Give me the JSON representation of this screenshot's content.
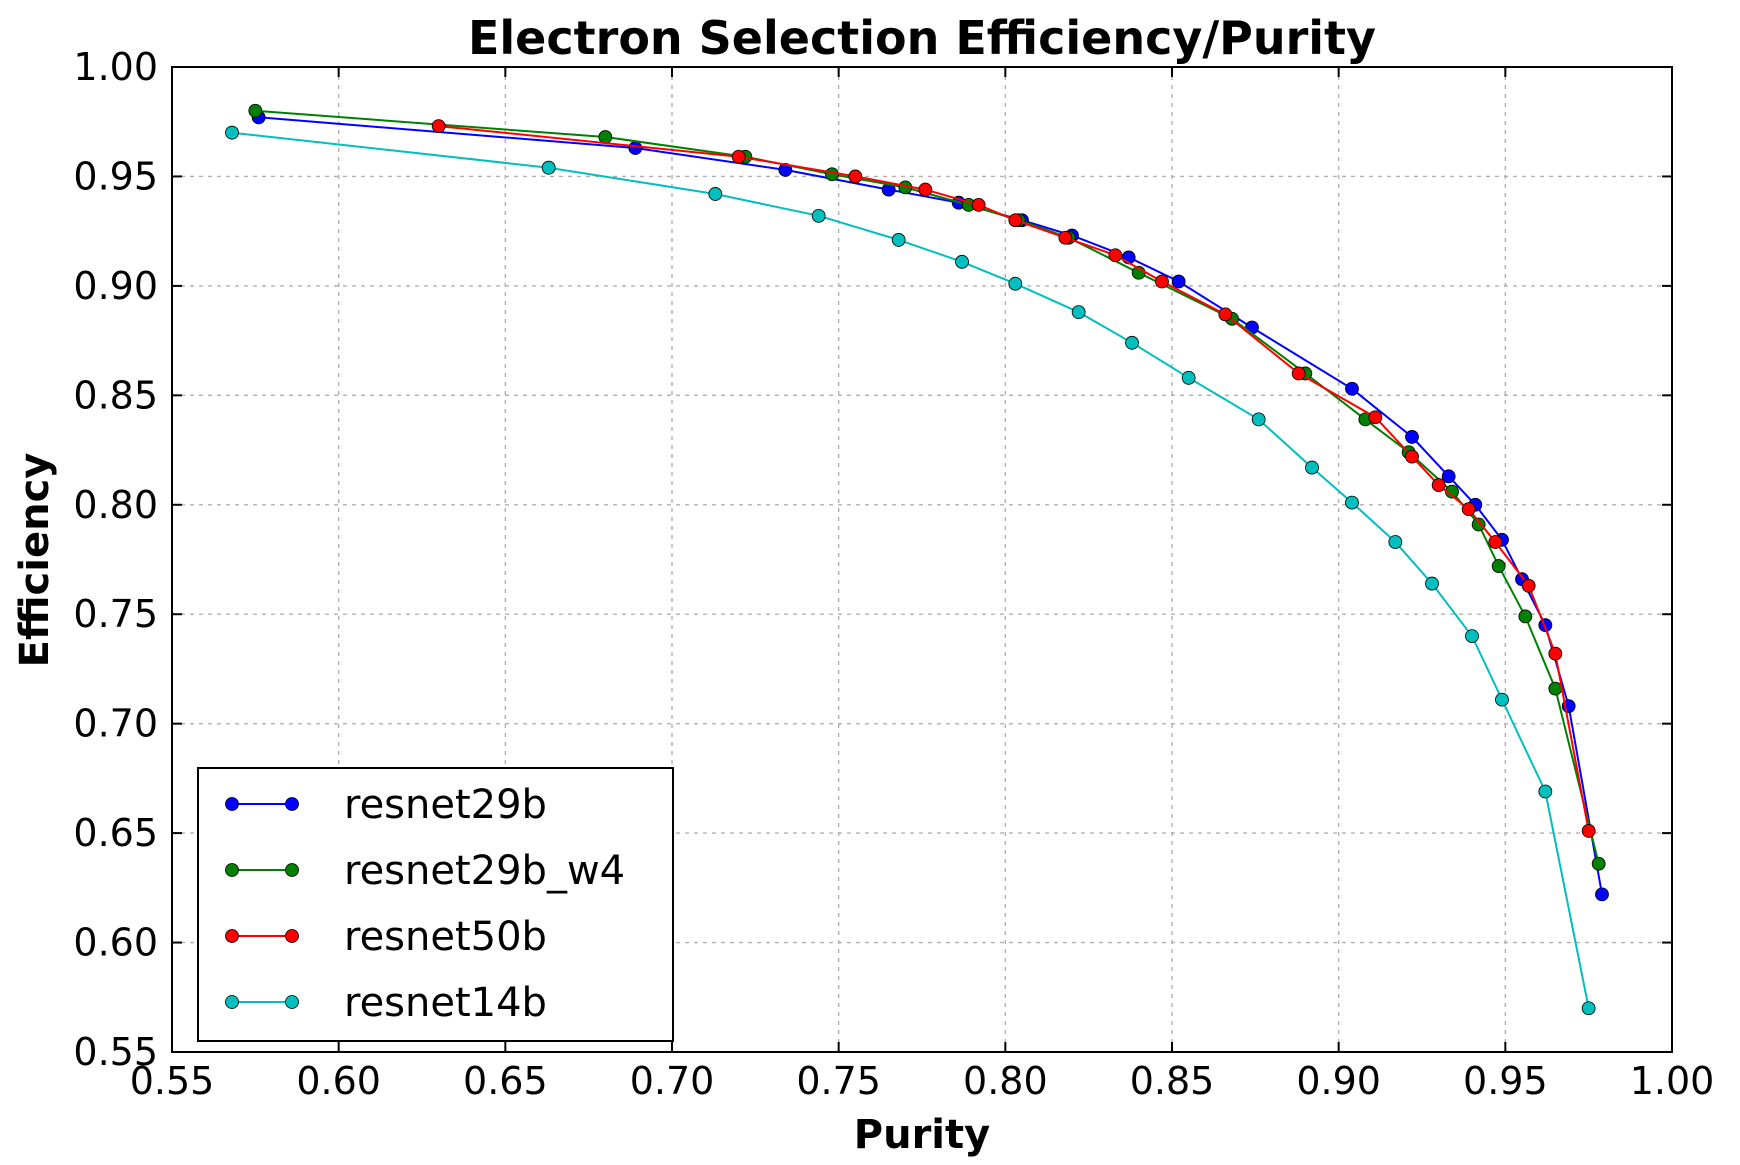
{
  "chart_data": {
    "type": "line",
    "title": "Electron Selection Efficiency/Purity",
    "xlabel": "Purity",
    "ylabel": "Efficiency",
    "xlim": [
      0.55,
      1.0
    ],
    "ylim": [
      0.55,
      1.0
    ],
    "xticks": [
      "0.55",
      "0.60",
      "0.65",
      "0.70",
      "0.75",
      "0.80",
      "0.85",
      "0.90",
      "0.95",
      "1.00"
    ],
    "yticks": [
      "0.55",
      "0.60",
      "0.65",
      "0.70",
      "0.75",
      "0.80",
      "0.85",
      "0.90",
      "0.95",
      "1.00"
    ],
    "grid": true,
    "legend_position": "lower-left",
    "series": [
      {
        "name": "resnet29b",
        "color": "#0000ff",
        "points": [
          [
            0.576,
            0.977
          ],
          [
            0.689,
            0.963
          ],
          [
            0.734,
            0.953
          ],
          [
            0.765,
            0.944
          ],
          [
            0.786,
            0.938
          ],
          [
            0.805,
            0.93
          ],
          [
            0.82,
            0.923
          ],
          [
            0.837,
            0.913
          ],
          [
            0.852,
            0.902
          ],
          [
            0.874,
            0.881
          ],
          [
            0.904,
            0.853
          ],
          [
            0.922,
            0.831
          ],
          [
            0.933,
            0.813
          ],
          [
            0.941,
            0.8
          ],
          [
            0.949,
            0.784
          ],
          [
            0.955,
            0.766
          ],
          [
            0.962,
            0.745
          ],
          [
            0.969,
            0.708
          ],
          [
            0.979,
            0.622
          ]
        ]
      },
      {
        "name": "resnet29b_w4",
        "color": "#008000",
        "points": [
          [
            0.575,
            0.98
          ],
          [
            0.68,
            0.968
          ],
          [
            0.722,
            0.959
          ],
          [
            0.748,
            0.951
          ],
          [
            0.77,
            0.945
          ],
          [
            0.789,
            0.937
          ],
          [
            0.804,
            0.93
          ],
          [
            0.819,
            0.922
          ],
          [
            0.84,
            0.906
          ],
          [
            0.868,
            0.885
          ],
          [
            0.89,
            0.86
          ],
          [
            0.908,
            0.839
          ],
          [
            0.921,
            0.824
          ],
          [
            0.934,
            0.806
          ],
          [
            0.942,
            0.791
          ],
          [
            0.948,
            0.772
          ],
          [
            0.956,
            0.749
          ],
          [
            0.965,
            0.716
          ],
          [
            0.978,
            0.636
          ]
        ]
      },
      {
        "name": "resnet50b",
        "color": "#ff0000",
        "points": [
          [
            0.63,
            0.973
          ],
          [
            0.72,
            0.959
          ],
          [
            0.755,
            0.95
          ],
          [
            0.776,
            0.944
          ],
          [
            0.792,
            0.937
          ],
          [
            0.803,
            0.93
          ],
          [
            0.818,
            0.922
          ],
          [
            0.833,
            0.914
          ],
          [
            0.847,
            0.902
          ],
          [
            0.866,
            0.887
          ],
          [
            0.888,
            0.86
          ],
          [
            0.911,
            0.84
          ],
          [
            0.922,
            0.822
          ],
          [
            0.93,
            0.809
          ],
          [
            0.939,
            0.798
          ],
          [
            0.947,
            0.783
          ],
          [
            0.957,
            0.763
          ],
          [
            0.965,
            0.732
          ],
          [
            0.975,
            0.651
          ]
        ]
      },
      {
        "name": "resnet14b",
        "color": "#00bfbf",
        "points": [
          [
            0.568,
            0.97
          ],
          [
            0.663,
            0.954
          ],
          [
            0.713,
            0.942
          ],
          [
            0.744,
            0.932
          ],
          [
            0.768,
            0.921
          ],
          [
            0.787,
            0.911
          ],
          [
            0.803,
            0.901
          ],
          [
            0.822,
            0.888
          ],
          [
            0.838,
            0.874
          ],
          [
            0.855,
            0.858
          ],
          [
            0.876,
            0.839
          ],
          [
            0.892,
            0.817
          ],
          [
            0.904,
            0.801
          ],
          [
            0.917,
            0.783
          ],
          [
            0.928,
            0.764
          ],
          [
            0.94,
            0.74
          ],
          [
            0.949,
            0.711
          ],
          [
            0.962,
            0.669
          ],
          [
            0.975,
            0.57
          ]
        ]
      }
    ]
  }
}
